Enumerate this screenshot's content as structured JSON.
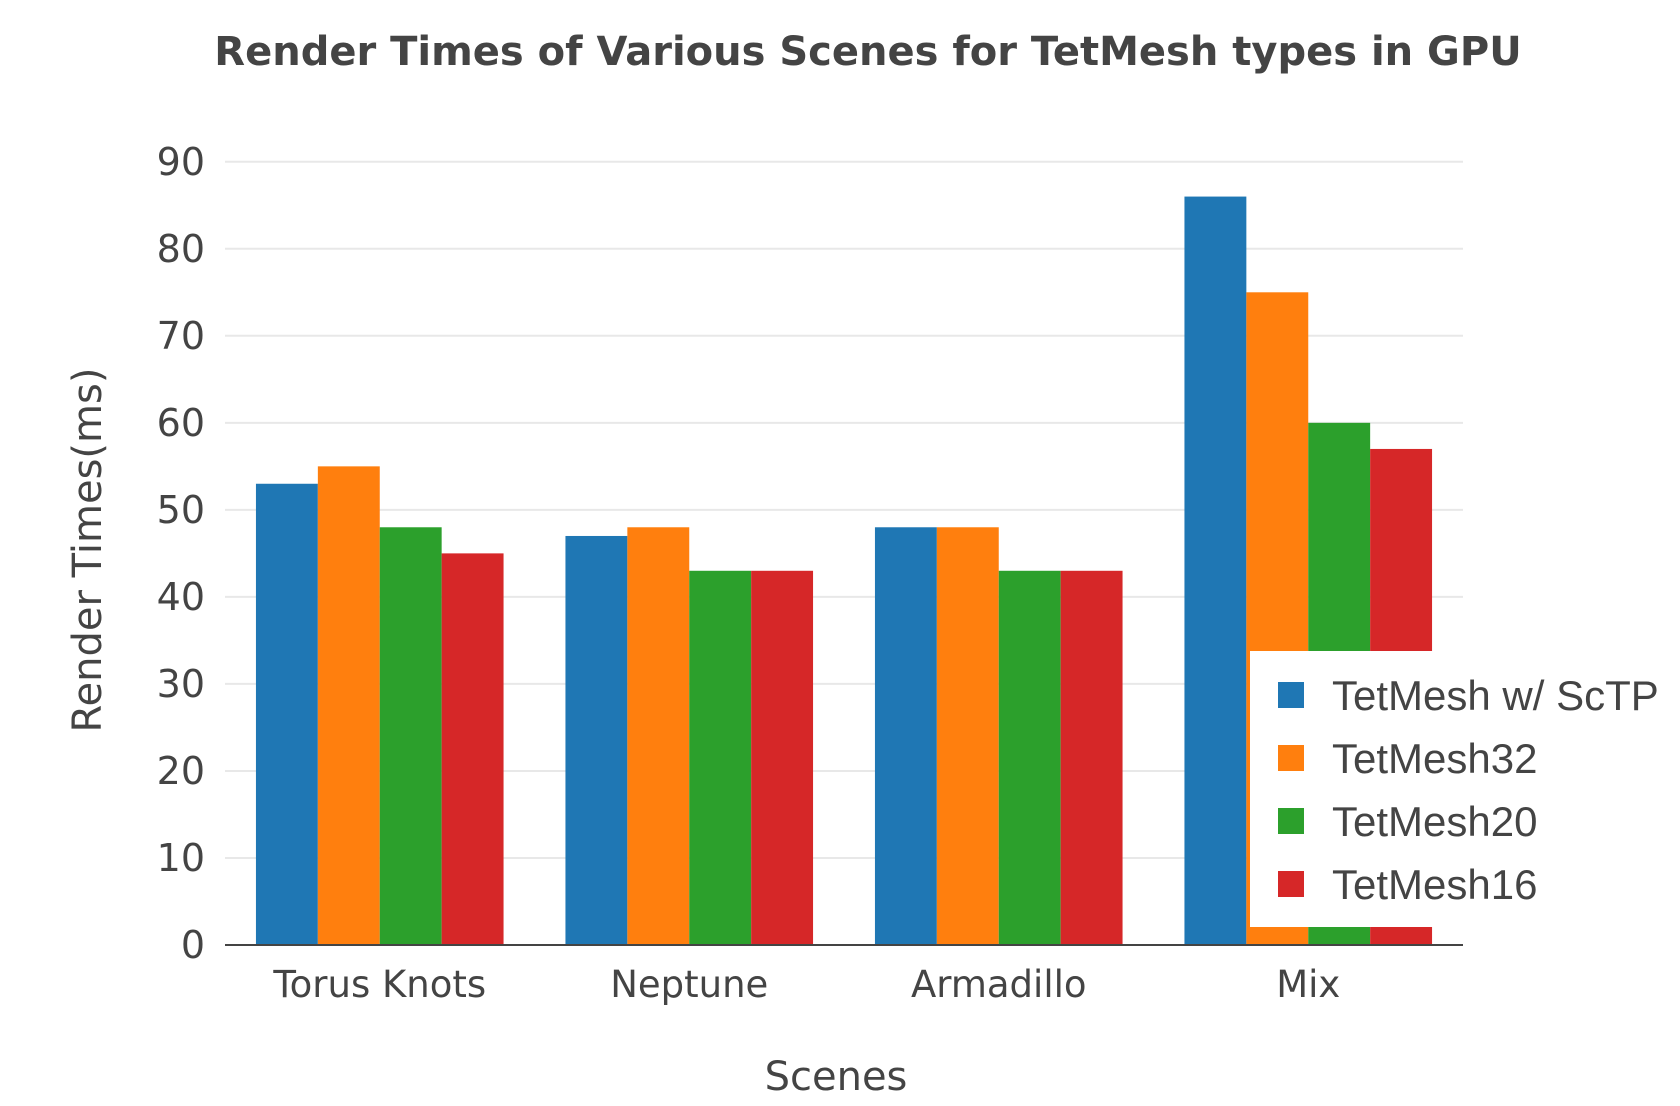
{
  "chart_data": {
    "type": "bar",
    "title": "Render Times of Various Scenes for TetMesh types in GPU",
    "xlabel": "Scenes",
    "ylabel": "Render Times(ms)",
    "categories": [
      "Torus Knots",
      "Neptune",
      "Armadillo",
      "Mix"
    ],
    "ylim": [
      0,
      92.5
    ],
    "yticks": [
      0,
      10,
      20,
      30,
      40,
      50,
      60,
      70,
      80,
      90
    ],
    "grid": true,
    "legend_position": "bottom-right",
    "series": [
      {
        "name": "TetMesh w/ ScTP",
        "color": "#1f77b4",
        "values": [
          53,
          47,
          48,
          86
        ]
      },
      {
        "name": "TetMesh32",
        "color": "#ff7f0e",
        "values": [
          55,
          48,
          48,
          75
        ]
      },
      {
        "name": "TetMesh20",
        "color": "#2ca02c",
        "values": [
          48,
          43,
          43,
          60
        ]
      },
      {
        "name": "TetMesh16",
        "color": "#d62728",
        "values": [
          45,
          43,
          43,
          57
        ]
      }
    ]
  }
}
